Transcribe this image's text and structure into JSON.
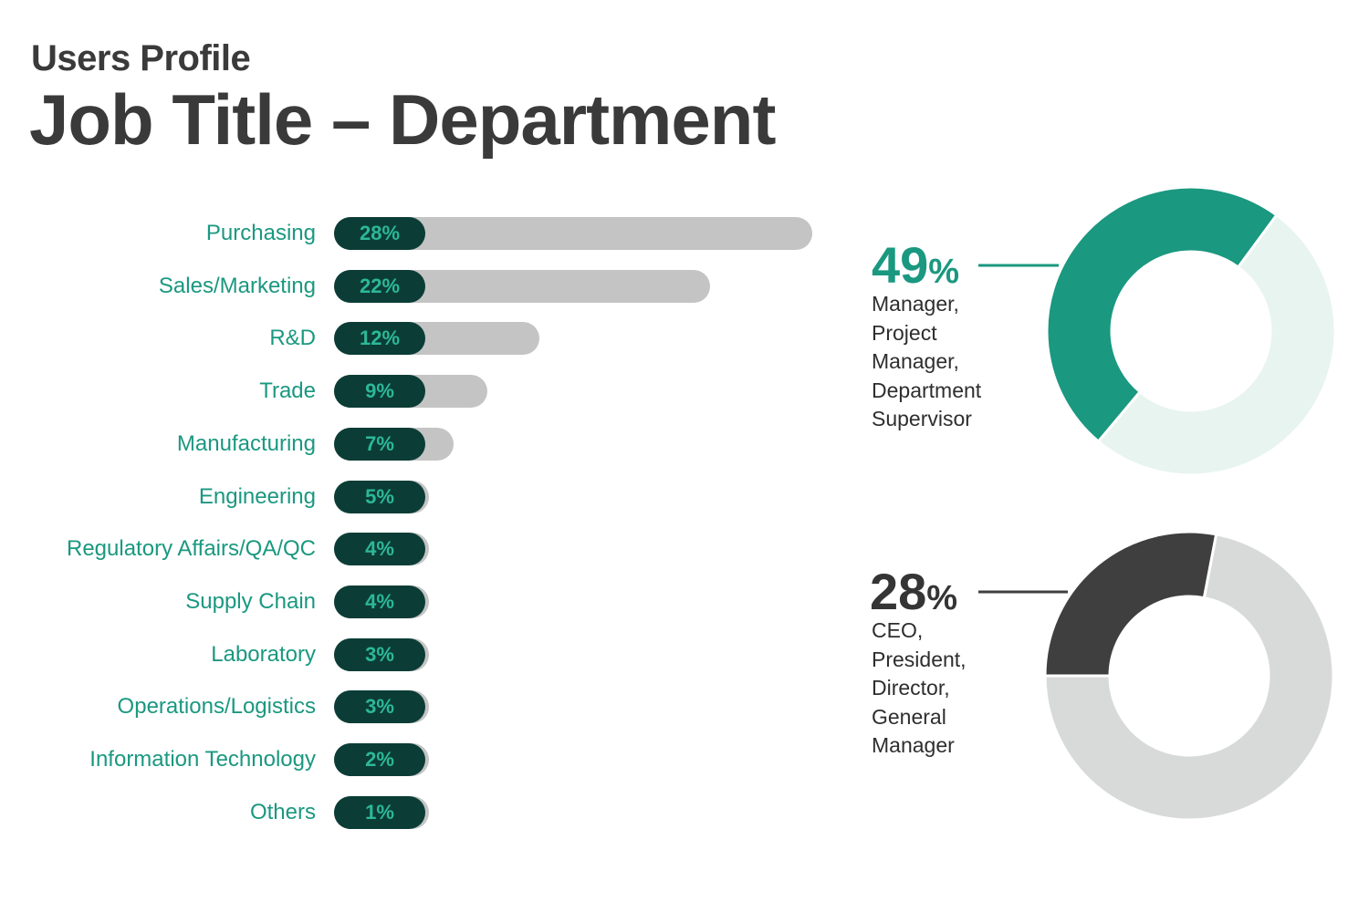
{
  "header": {
    "subtitle": "Users Profile",
    "title": "Job Title – Department"
  },
  "colors": {
    "accent_green": "#1a9880",
    "pill_dark": "#0b3d36",
    "pill_text": "#2cb898",
    "track_gray": "#c4c4c4",
    "donut1_light": "#e8f4ef",
    "donut2_dark": "#3f3f3f",
    "donut2_light": "#d8dada"
  },
  "chart_data": [
    {
      "type": "bar",
      "orientation": "horizontal",
      "categories": [
        "Purchasing",
        "Sales/Marketing",
        "R&D",
        "Trade",
        "Manufacturing",
        "Engineering",
        "Regulatory Affairs/QA/QC",
        "Supply Chain",
        "Laboratory",
        "Operations/Logistics",
        "Information Technology",
        "Others"
      ],
      "values": [
        28,
        22,
        12,
        9,
        7,
        5,
        4,
        4,
        3,
        3,
        2,
        1
      ],
      "value_labels": [
        "28%",
        "22%",
        "12%",
        "9%",
        "7%",
        "5%",
        "4%",
        "4%",
        "3%",
        "3%",
        "2%",
        "1%"
      ],
      "unit": "%"
    },
    {
      "type": "pie",
      "style": "donut",
      "value": 49,
      "value_label": "49",
      "value_suffix": "%",
      "description": "Manager,\nProject\nManager,\nDepartment\nSupervisor"
    },
    {
      "type": "pie",
      "style": "donut",
      "value": 28,
      "value_label": "28",
      "value_suffix": "%",
      "description": "CEO,\nPresident,\nDirector,\nGeneral\nManager"
    }
  ]
}
